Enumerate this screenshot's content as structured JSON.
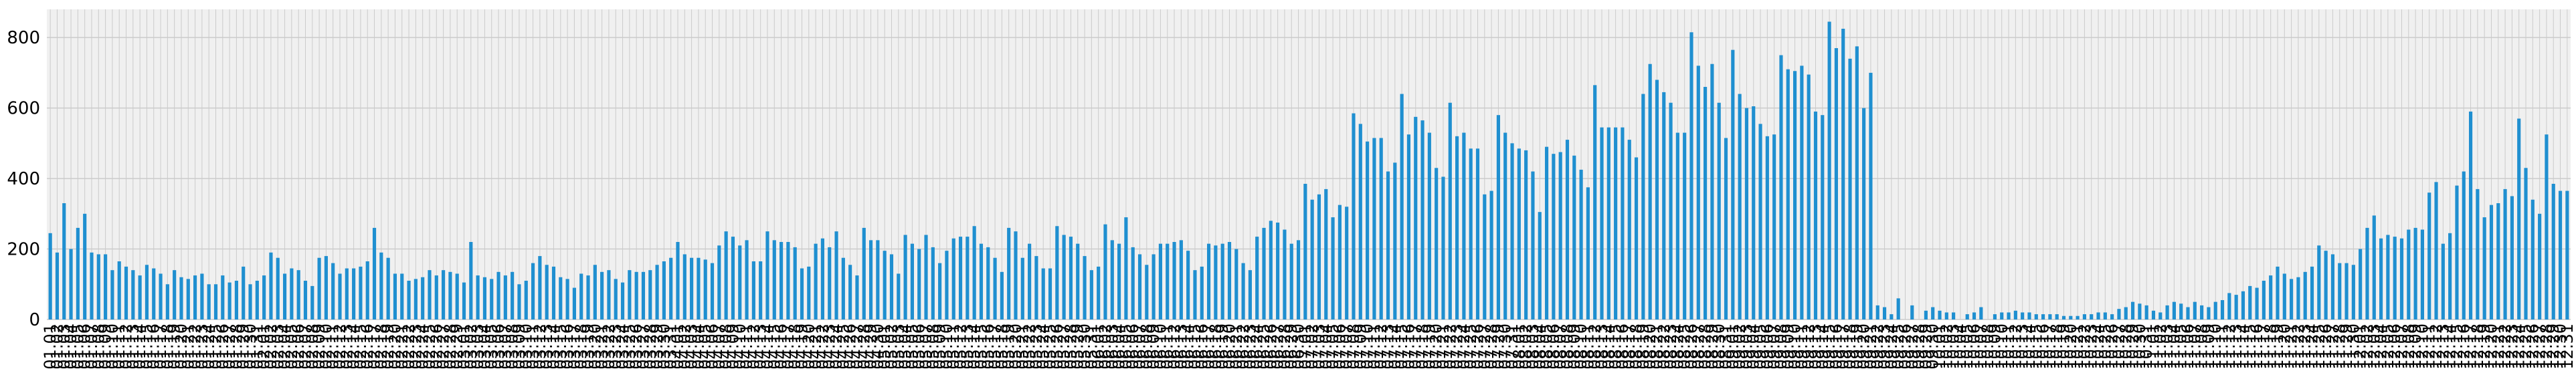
{
  "chart_data": {
    "type": "bar",
    "title": "",
    "xlabel": "",
    "ylabel": "",
    "ylim": [
      0,
      880
    ],
    "yticks": [
      0,
      200,
      400,
      600,
      800
    ],
    "grid": true,
    "legend": "none",
    "colors": {
      "bar": "#1f8fd0",
      "plot_background": "#f0f0f0",
      "grid": "#cbcbcb",
      "page_background": "#ffffff",
      "tick_label": "#000000"
    },
    "categories": [
      "01.01",
      "01.02",
      "01.03",
      "01.04",
      "01.05",
      "01.06",
      "01.07",
      "01.08",
      "01.09",
      "01.10",
      "01.11",
      "01.12",
      "01.13",
      "01.14",
      "01.15",
      "01.16",
      "01.17",
      "01.18",
      "01.19",
      "01.20",
      "01.21",
      "01.22",
      "01.23",
      "01.24",
      "01.25",
      "01.26",
      "01.27",
      "01.28",
      "01.29",
      "01.30",
      "01.31",
      "02.01",
      "02.02",
      "02.03",
      "02.04",
      "02.05",
      "02.06",
      "02.07",
      "02.08",
      "02.09",
      "02.10",
      "02.11",
      "02.12",
      "02.13",
      "02.14",
      "02.15",
      "02.16",
      "02.17",
      "02.18",
      "02.19",
      "02.20",
      "02.21",
      "02.22",
      "02.23",
      "02.24",
      "02.25",
      "02.26",
      "02.27",
      "02.28",
      "02.29",
      "03.01",
      "03.02",
      "03.03",
      "03.04",
      "03.05",
      "03.06",
      "03.07",
      "03.08",
      "03.09",
      "03.10",
      "03.11",
      "03.12",
      "03.13",
      "03.14",
      "03.15",
      "03.16",
      "03.17",
      "03.18",
      "03.19",
      "03.20",
      "03.21",
      "03.22",
      "03.23",
      "03.24",
      "03.25",
      "03.26",
      "03.27",
      "03.28",
      "03.29",
      "03.30",
      "03.31",
      "04.01",
      "04.02",
      "04.03",
      "04.04",
      "04.05",
      "04.06",
      "04.07",
      "04.08",
      "04.09",
      "04.10",
      "04.11",
      "04.12",
      "04.13",
      "04.14",
      "04.15",
      "04.16",
      "04.17",
      "04.18",
      "04.19",
      "04.20",
      "04.21",
      "04.22",
      "04.23",
      "04.24",
      "04.25",
      "04.26",
      "04.27",
      "04.28",
      "04.29",
      "04.30",
      "05.01",
      "05.02",
      "05.03",
      "05.04",
      "05.05",
      "05.06",
      "05.07",
      "05.08",
      "05.09",
      "05.10",
      "05.11",
      "05.12",
      "05.13",
      "05.14",
      "05.15",
      "05.16",
      "05.17",
      "05.18",
      "05.19",
      "05.20",
      "05.21",
      "05.22",
      "05.23",
      "05.24",
      "05.25",
      "05.26",
      "05.27",
      "05.28",
      "05.29",
      "05.30",
      "05.31",
      "06.01",
      "06.02",
      "06.03",
      "06.04",
      "06.05",
      "06.06",
      "06.07",
      "06.08",
      "06.09",
      "06.10",
      "06.11",
      "06.12",
      "06.13",
      "06.14",
      "06.15",
      "06.16",
      "06.17",
      "06.18",
      "06.19",
      "06.20",
      "06.21",
      "06.22",
      "06.23",
      "06.24",
      "06.25",
      "06.26",
      "06.27",
      "06.28",
      "06.29",
      "06.30",
      "07.01",
      "07.02",
      "07.03",
      "07.04",
      "07.05",
      "07.06",
      "07.07",
      "07.08",
      "07.09",
      "07.10",
      "07.11",
      "07.12",
      "07.13",
      "07.14",
      "07.15",
      "07.16",
      "07.17",
      "07.18",
      "07.19",
      "07.20",
      "07.21",
      "07.22",
      "07.23",
      "07.24",
      "07.25",
      "07.26",
      "07.27",
      "07.28",
      "07.29",
      "07.30",
      "07.31",
      "08.01",
      "08.02",
      "08.03",
      "08.04",
      "08.05",
      "08.06",
      "08.07",
      "08.08",
      "08.09",
      "08.10",
      "08.11",
      "08.12",
      "08.13",
      "08.14",
      "08.15",
      "08.16",
      "08.17",
      "08.18",
      "08.19",
      "08.20",
      "08.21",
      "08.22",
      "08.23",
      "08.24",
      "08.25",
      "08.26",
      "08.27",
      "08.28",
      "08.29",
      "08.30",
      "08.31",
      "09.01",
      "09.02",
      "09.03",
      "09.04",
      "09.05",
      "09.06",
      "09.07",
      "09.08",
      "09.09",
      "09.10",
      "09.11",
      "09.12",
      "09.13",
      "09.14",
      "09.15",
      "09.16",
      "09.17",
      "09.18",
      "09.19",
      "09.20",
      "09.21",
      "09.22",
      "09.23",
      "09.24",
      "09.25",
      "09.26",
      "09.27",
      "09.28",
      "09.29",
      "09.30",
      "10.01",
      "10.02",
      "10.03",
      "10.04",
      "10.05",
      "10.06",
      "10.07",
      "10.08",
      "10.09",
      "10.10",
      "10.11",
      "10.12",
      "10.13",
      "10.14",
      "10.15",
      "10.16",
      "10.17",
      "10.18",
      "10.19",
      "10.20",
      "10.21",
      "10.22",
      "10.23",
      "10.24",
      "10.25",
      "10.26",
      "10.27",
      "10.28",
      "10.29",
      "10.30",
      "10.31",
      "11.01",
      "11.02",
      "11.03",
      "11.04",
      "11.05",
      "11.06",
      "11.07",
      "11.08",
      "11.09",
      "11.10",
      "11.11",
      "11.12",
      "11.13",
      "11.14",
      "11.15",
      "11.16",
      "11.17",
      "11.18",
      "11.19",
      "11.20",
      "11.21",
      "11.22",
      "11.23",
      "11.24",
      "11.25",
      "11.26",
      "11.27",
      "11.28",
      "11.29",
      "11.30",
      "12.01",
      "12.02",
      "12.03",
      "12.04",
      "12.05",
      "12.06",
      "12.07",
      "12.08",
      "12.09",
      "12.10",
      "12.11",
      "12.12",
      "12.13",
      "12.14",
      "12.15",
      "12.16",
      "12.17",
      "12.18",
      "12.19",
      "12.20",
      "12.21",
      "12.22",
      "12.23",
      "12.24",
      "12.25",
      "12.26",
      "12.27",
      "12.28",
      "12.29",
      "12.30",
      "12.31"
    ],
    "values": [
      245,
      190,
      330,
      200,
      260,
      300,
      190,
      185,
      185,
      140,
      165,
      150,
      140,
      125,
      155,
      145,
      130,
      100,
      140,
      120,
      115,
      125,
      130,
      100,
      100,
      125,
      105,
      110,
      150,
      100,
      110,
      125,
      190,
      175,
      130,
      145,
      140,
      110,
      95,
      175,
      180,
      160,
      130,
      145,
      145,
      150,
      165,
      260,
      190,
      175,
      130,
      130,
      110,
      115,
      120,
      140,
      125,
      140,
      135,
      130,
      105,
      220,
      125,
      120,
      115,
      135,
      125,
      135,
      100,
      110,
      160,
      180,
      155,
      150,
      120,
      115,
      90,
      130,
      125,
      155,
      135,
      140,
      115,
      105,
      140,
      135,
      135,
      140,
      155,
      165,
      175,
      220,
      185,
      175,
      175,
      170,
      160,
      210,
      250,
      235,
      210,
      225,
      165,
      165,
      250,
      225,
      220,
      220,
      205,
      145,
      150,
      215,
      230,
      205,
      250,
      175,
      155,
      125,
      260,
      225,
      225,
      195,
      185,
      130,
      240,
      215,
      200,
      240,
      205,
      160,
      195,
      230,
      235,
      235,
      265,
      215,
      205,
      175,
      135,
      260,
      250,
      175,
      215,
      180,
      145,
      145,
      265,
      240,
      235,
      215,
      180,
      140,
      150,
      270,
      225,
      215,
      290,
      205,
      185,
      155,
      185,
      215,
      215,
      220,
      225,
      195,
      140,
      150,
      215,
      210,
      215,
      220,
      200,
      160,
      140,
      235,
      260,
      280,
      275,
      255,
      215,
      225,
      385,
      340,
      355,
      370,
      290,
      325,
      320,
      585,
      555,
      505,
      515,
      515,
      420,
      445,
      640,
      525,
      575,
      565,
      530,
      430,
      405,
      615,
      520,
      530,
      485,
      485,
      355,
      365,
      580,
      530,
      500,
      485,
      480,
      420,
      305,
      490,
      470,
      475,
      510,
      465,
      425,
      375,
      665,
      545,
      545,
      545,
      545,
      510,
      460,
      640,
      725,
      680,
      645,
      615,
      530,
      530,
      815,
      720,
      660,
      725,
      615,
      515,
      765,
      640,
      600,
      605,
      555,
      520,
      525,
      750,
      710,
      705,
      720,
      695,
      590,
      580,
      845,
      770,
      825,
      740,
      775,
      600,
      700,
      40,
      35,
      15,
      60,
      0,
      40,
      0,
      25,
      35,
      25,
      20,
      20,
      0,
      15,
      20,
      35,
      0,
      15,
      20,
      20,
      25,
      20,
      20,
      15,
      15,
      15,
      15,
      10,
      10,
      10,
      15,
      15,
      20,
      20,
      15,
      30,
      35,
      50,
      45,
      40,
      25,
      20,
      40,
      50,
      45,
      35,
      50,
      40,
      35,
      50,
      55,
      75,
      70,
      80,
      95,
      90,
      110,
      125,
      150,
      130,
      115,
      120,
      135,
      150,
      210,
      195,
      185,
      160,
      160,
      155,
      200,
      260,
      295,
      230,
      240,
      235,
      230,
      255,
      260,
      255,
      360,
      390,
      215,
      245,
      380,
      420,
      590,
      370,
      290,
      325,
      330,
      370,
      350,
      570,
      430,
      340,
      300,
      525,
      385,
      365,
      365
    ]
  }
}
